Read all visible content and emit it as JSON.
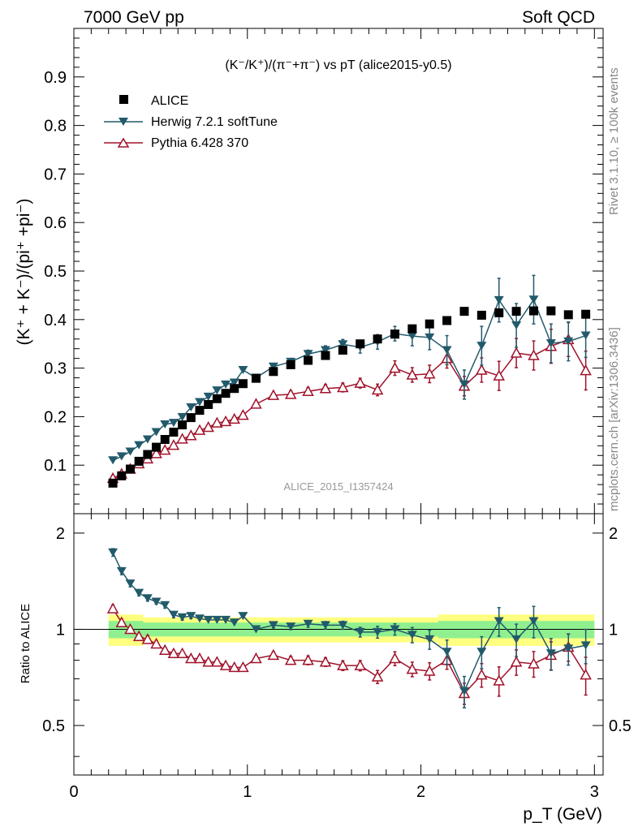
{
  "header": {
    "left": "7000 GeV pp",
    "right": "Soft QCD"
  },
  "side_text": {
    "top": "Rivet 3.1.10, ≥ 100k events",
    "bottom": "mcplots.cern.ch [arXiv:1306.3436]"
  },
  "chart_data": {
    "type": "scatter",
    "title": "(K⁻/K⁺)/(π⁻+π⁻) vs pT (alice2015-y0.5)",
    "watermark": "ALICE_2015_I1357424",
    "xlabel": "p_T (GeV)",
    "ylabel": "(K⁺ + K⁻)/(pi⁺ +pi⁻)",
    "ratio_ylabel": "Ratio to ALICE",
    "xlim": [
      0,
      3.05
    ],
    "ylim": [
      0,
      1.0
    ],
    "ratio_ylim": [
      0.35,
      2.3
    ],
    "xticks": [
      0,
      1,
      2,
      3
    ],
    "yticks": [
      0.1,
      0.2,
      0.3,
      0.4,
      0.5,
      0.6,
      0.7,
      0.8,
      0.9
    ],
    "ratio_yticks": [
      0.5,
      1,
      2
    ],
    "x": [
      0.225,
      0.275,
      0.325,
      0.375,
      0.425,
      0.475,
      0.525,
      0.575,
      0.625,
      0.675,
      0.725,
      0.775,
      0.825,
      0.875,
      0.925,
      0.975,
      1.05,
      1.15,
      1.25,
      1.35,
      1.45,
      1.55,
      1.65,
      1.75,
      1.85,
      1.95,
      2.05,
      2.15,
      2.25,
      2.35,
      2.45,
      2.55,
      2.65,
      2.75,
      2.85,
      2.95
    ],
    "series": [
      {
        "name": "ALICE",
        "values": [
          0.063,
          0.078,
          0.092,
          0.108,
          0.122,
          0.137,
          0.153,
          0.168,
          0.183,
          0.198,
          0.213,
          0.225,
          0.237,
          0.248,
          0.258,
          0.268,
          0.279,
          0.293,
          0.307,
          0.316,
          0.326,
          0.337,
          0.35,
          0.36,
          0.37,
          0.381,
          0.391,
          0.398,
          0.417,
          0.409,
          0.414,
          0.417,
          0.418,
          0.418,
          0.41,
          0.411
        ],
        "color": "#000000"
      },
      {
        "name": "Herwig 7.2.1 softTune",
        "values": [
          0.11,
          0.118,
          0.128,
          0.141,
          0.153,
          0.168,
          0.184,
          0.187,
          0.199,
          0.219,
          0.23,
          0.241,
          0.254,
          0.266,
          0.27,
          0.296,
          0.28,
          0.303,
          0.313,
          0.329,
          0.337,
          0.349,
          0.343,
          0.354,
          0.371,
          0.366,
          0.363,
          0.337,
          0.266,
          0.346,
          0.44,
          0.388,
          0.441,
          0.351,
          0.355,
          0.367
        ],
        "errors": [
          0.003,
          0.003,
          0.003,
          0.003,
          0.003,
          0.003,
          0.004,
          0.004,
          0.004,
          0.004,
          0.004,
          0.004,
          0.004,
          0.004,
          0.005,
          0.005,
          0.005,
          0.006,
          0.007,
          0.008,
          0.009,
          0.01,
          0.012,
          0.015,
          0.015,
          0.02,
          0.025,
          0.03,
          0.03,
          0.04,
          0.045,
          0.045,
          0.05,
          0.04,
          0.04,
          0.045
        ],
        "color": "#225a6b"
      },
      {
        "name": "Pythia 6.428 370",
        "values": [
          0.073,
          0.082,
          0.092,
          0.103,
          0.113,
          0.124,
          0.131,
          0.141,
          0.154,
          0.161,
          0.172,
          0.178,
          0.187,
          0.19,
          0.195,
          0.203,
          0.226,
          0.244,
          0.246,
          0.252,
          0.258,
          0.26,
          0.269,
          0.255,
          0.3,
          0.286,
          0.288,
          0.32,
          0.263,
          0.296,
          0.284,
          0.331,
          0.326,
          0.345,
          0.359,
          0.295
        ],
        "errors": [
          0.002,
          0.002,
          0.002,
          0.002,
          0.003,
          0.003,
          0.003,
          0.003,
          0.003,
          0.003,
          0.004,
          0.004,
          0.004,
          0.004,
          0.004,
          0.005,
          0.005,
          0.006,
          0.007,
          0.008,
          0.008,
          0.009,
          0.01,
          0.012,
          0.015,
          0.015,
          0.018,
          0.02,
          0.02,
          0.025,
          0.03,
          0.03,
          0.03,
          0.035,
          0.035,
          0.04
        ],
        "color": "#a0122a"
      }
    ],
    "ratio": {
      "herwig": [
        1.74,
        1.52,
        1.39,
        1.3,
        1.25,
        1.22,
        1.19,
        1.11,
        1.09,
        1.1,
        1.08,
        1.07,
        1.07,
        1.07,
        1.05,
        1.1,
        1.0,
        1.03,
        1.02,
        1.04,
        1.03,
        1.03,
        0.98,
        0.98,
        1.0,
        0.96,
        0.93,
        0.85,
        0.64,
        0.85,
        1.06,
        0.93,
        1.06,
        0.84,
        0.87,
        0.89
      ],
      "pythia": [
        1.16,
        1.05,
        1.0,
        0.95,
        0.93,
        0.9,
        0.86,
        0.84,
        0.84,
        0.81,
        0.81,
        0.79,
        0.79,
        0.77,
        0.76,
        0.76,
        0.81,
        0.83,
        0.8,
        0.8,
        0.79,
        0.77,
        0.77,
        0.71,
        0.81,
        0.75,
        0.74,
        0.8,
        0.63,
        0.72,
        0.69,
        0.79,
        0.78,
        0.83,
        0.88,
        0.72
      ],
      "band_inner": 0.05,
      "band_outer": 0.09
    },
    "legend_position": "top-left"
  }
}
